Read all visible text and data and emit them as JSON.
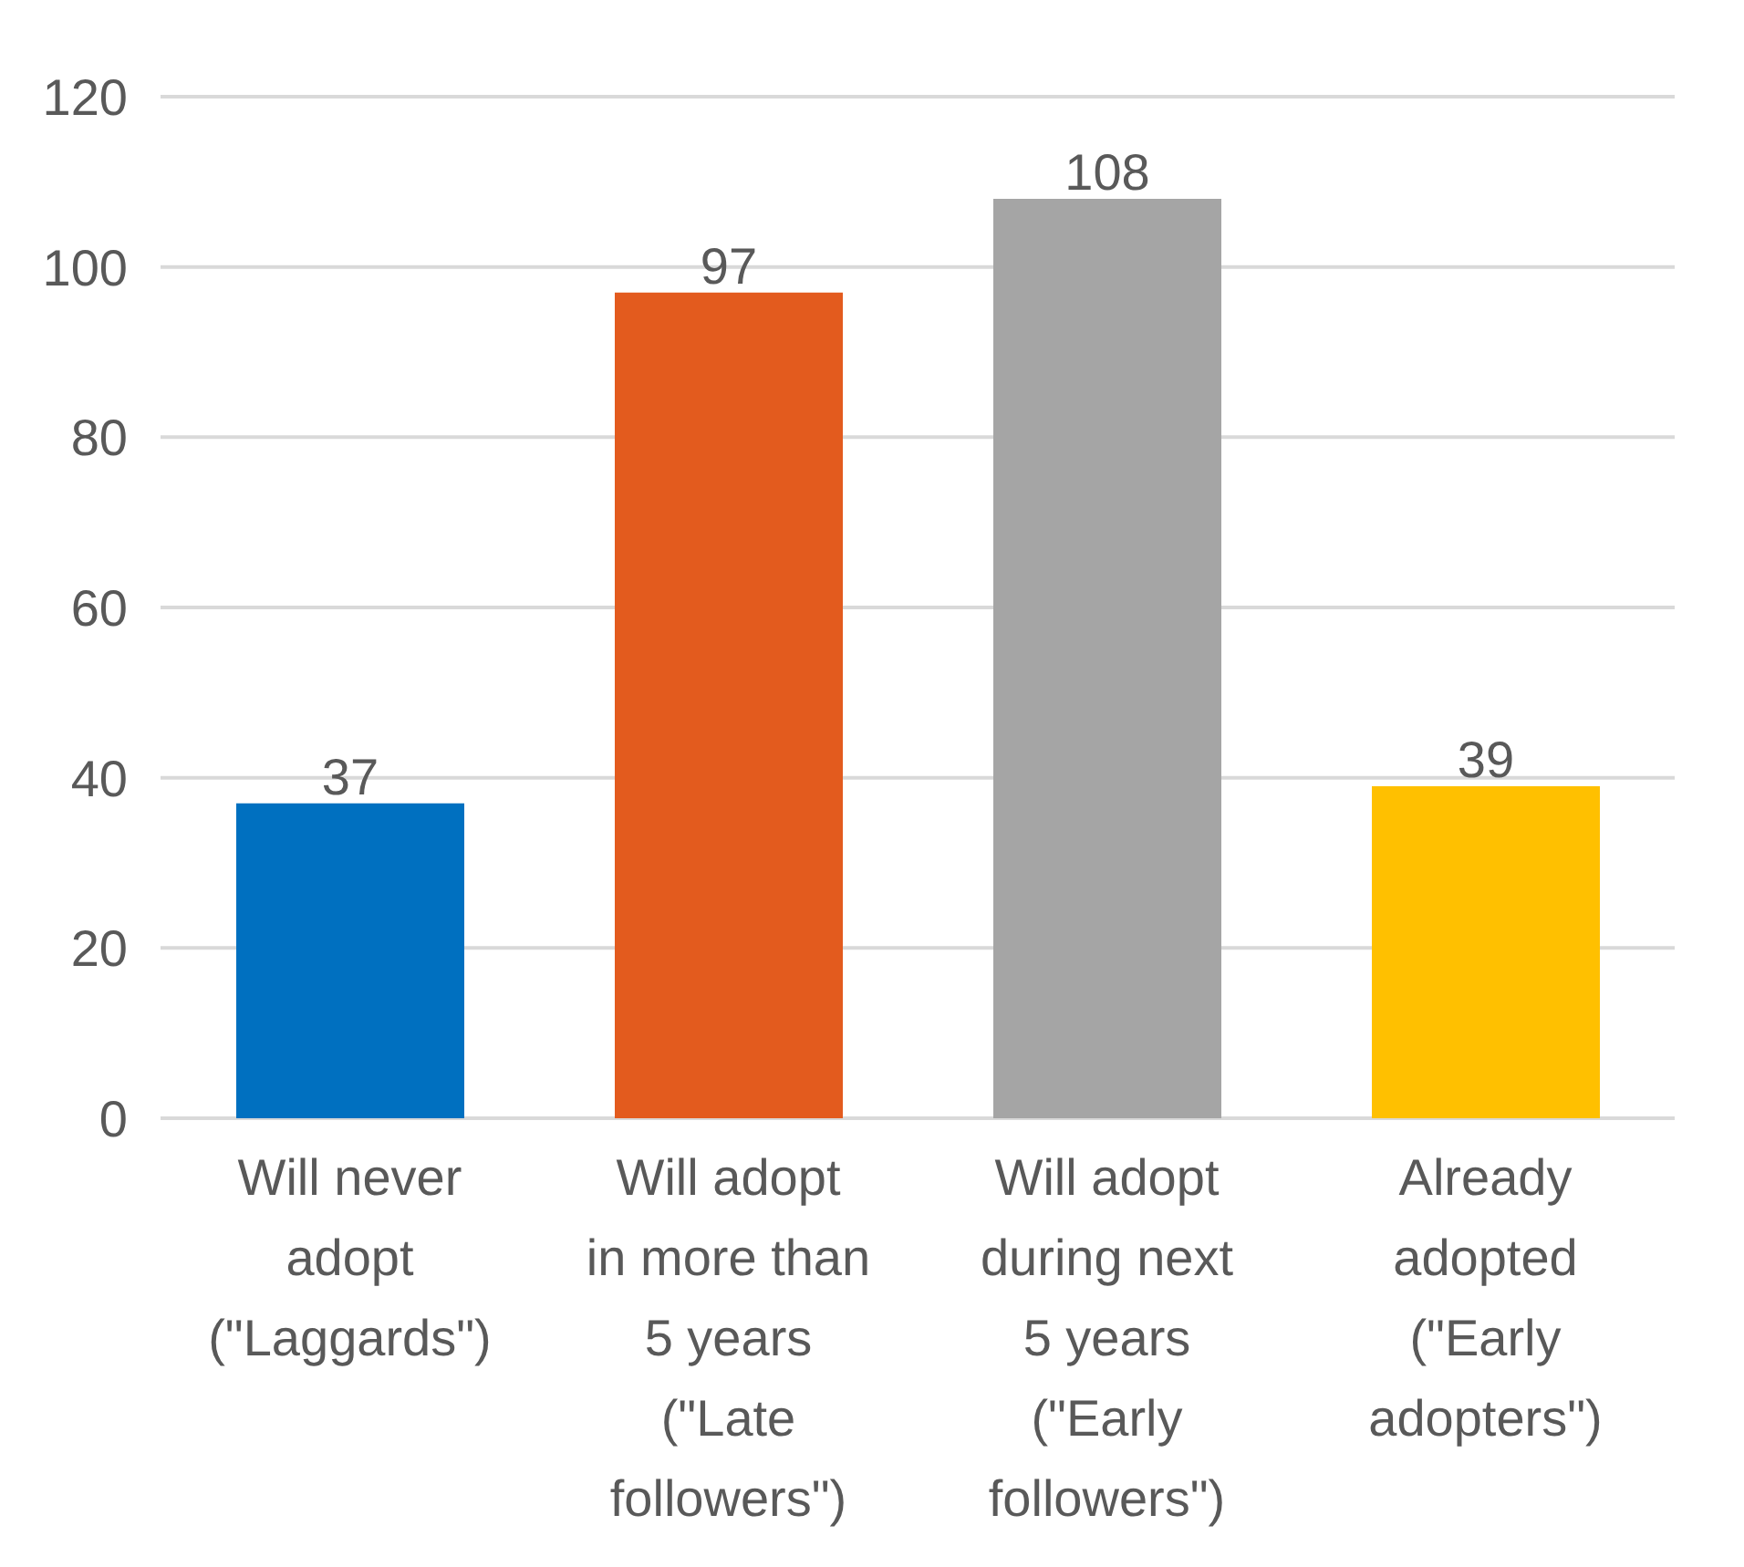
{
  "chart_data": {
    "type": "bar",
    "categories": [
      "Will never adopt (\"Laggards\")",
      "Will adopt in more than 5 years (\"Late followers\")",
      "Will adopt during next 5 years (\"Early followers\")",
      "Already adopted (\"Early adopters\")"
    ],
    "values": [
      37,
      97,
      108,
      39
    ],
    "colors": [
      "#0070c0",
      "#e35b1e",
      "#a5a5a5",
      "#ffc000"
    ],
    "ylim": [
      0,
      120
    ],
    "yticks": [
      0,
      20,
      40,
      60,
      80,
      100,
      120
    ],
    "grid": "y",
    "data_labels": true
  }
}
